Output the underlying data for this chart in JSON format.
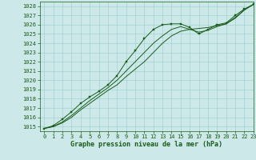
{
  "title": "Graphe pression niveau de la mer (hPa)",
  "bg_color": "#cce8e8",
  "plot_bg": "#cce8e8",
  "grid_color": "#99cccc",
  "line_color": "#1a5c1a",
  "marker_color": "#1a5c1a",
  "xlim": [
    -0.5,
    23
  ],
  "ylim": [
    1014.5,
    1028.5
  ],
  "yticks": [
    1015,
    1016,
    1017,
    1018,
    1019,
    1020,
    1021,
    1022,
    1023,
    1024,
    1025,
    1026,
    1027,
    1028
  ],
  "xticks": [
    0,
    1,
    2,
    3,
    4,
    5,
    6,
    7,
    8,
    9,
    10,
    11,
    12,
    13,
    14,
    15,
    16,
    17,
    18,
    19,
    20,
    21,
    22,
    23
  ],
  "series1_x": [
    0,
    1,
    2,
    3,
    4,
    5,
    6,
    7,
    8,
    9,
    10,
    11,
    12,
    13,
    14,
    15,
    16,
    17,
    18,
    19,
    20,
    21,
    22,
    23
  ],
  "series1_y": [
    1014.8,
    1015.1,
    1015.8,
    1016.6,
    1017.5,
    1018.2,
    1018.8,
    1019.5,
    1020.5,
    1022.0,
    1023.2,
    1024.5,
    1025.5,
    1026.0,
    1026.1,
    1026.1,
    1025.7,
    1025.0,
    1025.5,
    1026.0,
    1026.2,
    1027.0,
    1027.7,
    1028.2
  ],
  "series2_x": [
    0,
    1,
    2,
    3,
    4,
    5,
    6,
    7,
    8,
    9,
    10,
    11,
    12,
    13,
    14,
    15,
    16,
    17,
    18,
    19,
    20,
    21,
    22,
    23
  ],
  "series2_y": [
    1014.8,
    1015.0,
    1015.5,
    1016.2,
    1017.0,
    1017.8,
    1018.5,
    1019.2,
    1020.0,
    1021.0,
    1022.0,
    1023.0,
    1024.0,
    1024.8,
    1025.5,
    1025.8,
    1025.5,
    1025.2,
    1025.4,
    1025.8,
    1026.1,
    1026.8,
    1027.6,
    1028.2
  ],
  "series3_x": [
    0,
    1,
    2,
    3,
    4,
    5,
    6,
    7,
    8,
    9,
    10,
    11,
    12,
    13,
    14,
    15,
    16,
    17,
    18,
    19,
    20,
    21,
    22,
    23
  ],
  "series3_y": [
    1014.8,
    1015.0,
    1015.4,
    1016.0,
    1016.8,
    1017.5,
    1018.2,
    1018.9,
    1019.5,
    1020.4,
    1021.2,
    1022.0,
    1023.0,
    1024.0,
    1024.8,
    1025.3,
    1025.5,
    1025.6,
    1025.7,
    1025.9,
    1026.1,
    1026.7,
    1027.6,
    1028.2
  ],
  "tick_fontsize": 5,
  "title_fontsize": 6,
  "lw": 0.7,
  "ms": 1.8
}
